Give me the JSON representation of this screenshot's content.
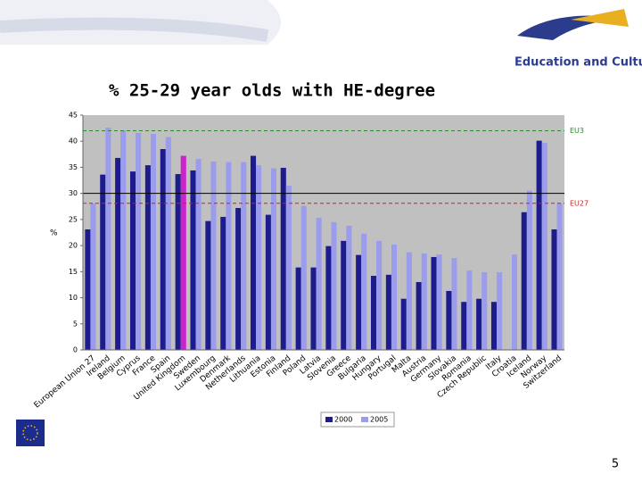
{
  "header": {
    "brand": "Education and Culture"
  },
  "page_number": 5,
  "chart_data": {
    "type": "bar",
    "title": "% 25-29 year olds with HE-degree",
    "y_label": "%",
    "categories": [
      "European Union 27",
      "Ireland",
      "Belgium",
      "Cyprus",
      "France",
      "Spain",
      "United Kingdom",
      "Sweden",
      "Luxembourg",
      "Denmark",
      "Netherlands",
      "Lithuania",
      "Estonia",
      "Finland",
      "Poland",
      "Latvia",
      "Slovenia",
      "Greece",
      "Bulgaria",
      "Hungary",
      "Portugal",
      "Malta",
      "Austria",
      "Germany",
      "Slovakia",
      "Romania",
      "Czech Republic",
      "Italy",
      "Croatia",
      "Iceland",
      "Norway",
      "Switzerland"
    ],
    "series": [
      {
        "name": "2000",
        "color": "#1c1c8c",
        "values": [
          23.1,
          33.6,
          36.8,
          34.2,
          35.4,
          38.5,
          33.7,
          34.4,
          24.7,
          25.5,
          27.2,
          37.2,
          25.9,
          34.9,
          15.8,
          15.8,
          19.9,
          20.9,
          18.2,
          14.2,
          14.4,
          9.8,
          13.0,
          17.8,
          11.3,
          9.2,
          9.8,
          9.2,
          null,
          26.4,
          40.1,
          23.1
        ]
      },
      {
        "name": "2005",
        "color": "#9c9cec",
        "values": [
          28.1,
          42.6,
          42.1,
          41.6,
          41.4,
          40.8,
          37.2,
          36.6,
          36.1,
          36.0,
          36.0,
          35.4,
          34.8,
          31.5,
          27.6,
          25.3,
          24.5,
          23.8,
          22.3,
          20.9,
          20.2,
          18.7,
          18.5,
          18.3,
          17.6,
          15.2,
          14.9,
          14.9,
          18.3,
          30.5,
          39.7,
          28.1
        ]
      }
    ],
    "highlight": {
      "series": 1,
      "index": 6,
      "color": "#cc22cc"
    },
    "reference_lines": [
      {
        "value": 42,
        "label": "EU3",
        "color": "#2a8a2a",
        "dashed": true
      },
      {
        "value": 30,
        "color": "#000000",
        "dashed": false
      },
      {
        "value": 28.1,
        "label": "EU27",
        "color": "#cc2222",
        "dashed": true
      }
    ],
    "ylim": [
      0,
      45
    ],
    "yticks": [
      0,
      5,
      10,
      15,
      20,
      25,
      30,
      35,
      40,
      45
    ],
    "legend": "bottom"
  }
}
